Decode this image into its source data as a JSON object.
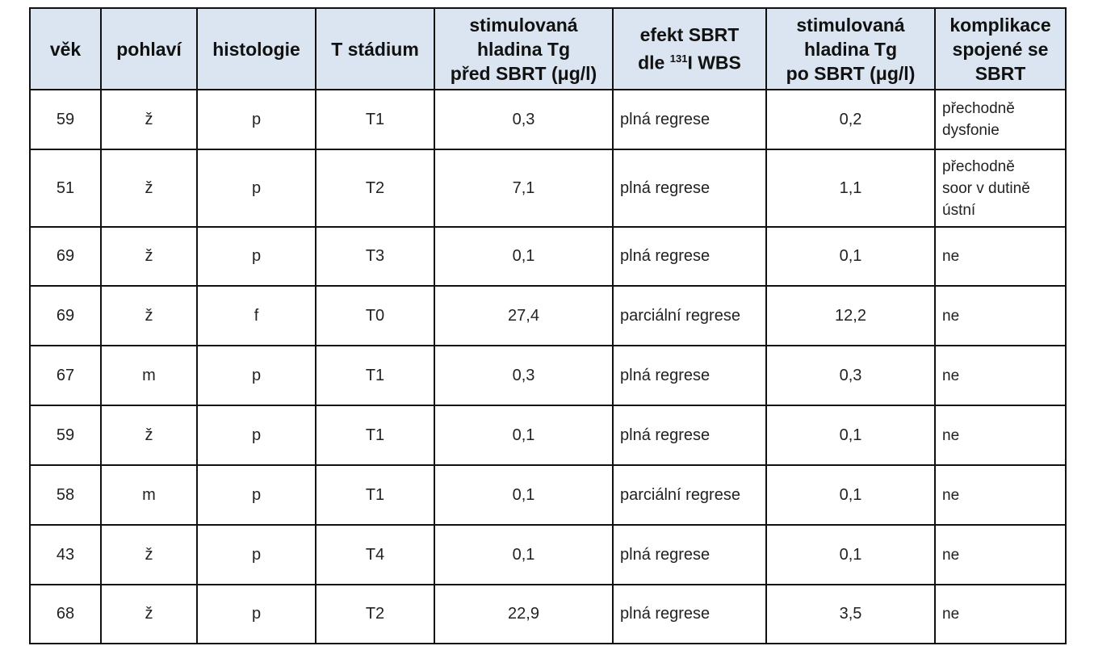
{
  "table": {
    "header": [
      [
        "věk"
      ],
      [
        "pohlaví"
      ],
      [
        "histologie"
      ],
      [
        "T stádium"
      ],
      [
        "stimulovaná",
        "hladina Tg",
        "před SBRT (μg/l)"
      ],
      [
        "efekt SBRT",
        [
          "dle ",
          "131",
          "I WBS"
        ]
      ],
      [
        "stimulovaná",
        "hladina Tg",
        "po SBRT (μg/l)"
      ],
      [
        "komplikace",
        "spojené se",
        "SBRT"
      ]
    ],
    "rows": [
      [
        "59",
        "ž",
        "p",
        "T1",
        "0,3",
        "plná regrese",
        "0,2",
        [
          "přechodně",
          "dysfonie"
        ]
      ],
      [
        "51",
        "ž",
        "p",
        "T2",
        "7,1",
        "plná regrese",
        "1,1",
        [
          "přechodně",
          "soor v dutině",
          "ústní"
        ]
      ],
      [
        "69",
        "ž",
        "p",
        "T3",
        "0,1",
        "plná regrese",
        "0,1",
        "ne"
      ],
      [
        "69",
        "ž",
        "f",
        "T0",
        "27,4",
        "parciální regrese",
        "12,2",
        "ne"
      ],
      [
        "67",
        "m",
        "p",
        "T1",
        "0,3",
        "plná regrese",
        "0,3",
        "ne"
      ],
      [
        "59",
        "ž",
        "p",
        "T1",
        "0,1",
        "plná regrese",
        "0,1",
        "ne"
      ],
      [
        "58",
        "m",
        "p",
        "T1",
        "0,1",
        "parciální regrese",
        "0,1",
        "ne"
      ],
      [
        "43",
        "ž",
        "p",
        "T4",
        "0,1",
        "plná regrese",
        "0,1",
        "ne"
      ],
      [
        "68",
        "ž",
        "p",
        "T2",
        "22,9",
        "plná regrese",
        "3,5",
        "ne"
      ]
    ]
  }
}
